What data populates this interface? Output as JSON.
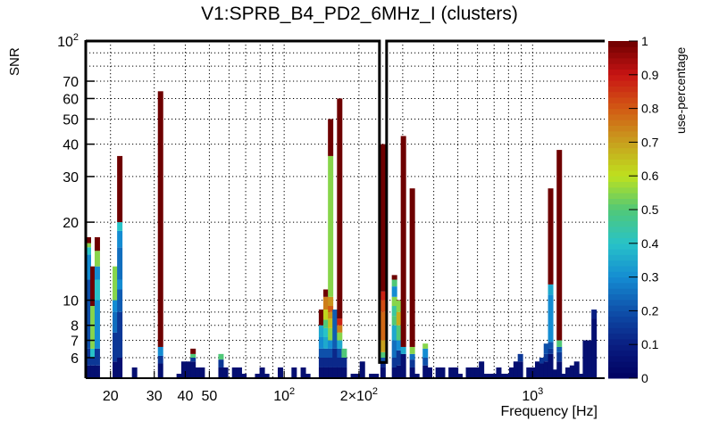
{
  "chart_data": {
    "type": "heatmap",
    "title": "V1:SPRB_B4_PD2_6MHz_I (clusters)",
    "xlabel": "Frequency [Hz]",
    "ylabel": "SNR",
    "zlabel": "use-percentage",
    "xscale": "log",
    "yscale": "log",
    "xlim": [
      15.9,
      1950
    ],
    "ylim": [
      5,
      100
    ],
    "zlim": [
      0,
      1
    ],
    "x_ticks": [
      {
        "value": 20,
        "label": "20"
      },
      {
        "value": 30,
        "label": "30"
      },
      {
        "value": 40,
        "label": "40"
      },
      {
        "value": 50,
        "label": "50"
      },
      {
        "value": 100,
        "label": "10",
        "sup": "2"
      },
      {
        "value": 200,
        "label": "2×10",
        "sup": "2"
      },
      {
        "value": 1000,
        "label": "10",
        "sup": "3"
      }
    ],
    "y_ticks": [
      {
        "value": 6,
        "label": "6"
      },
      {
        "value": 7,
        "label": "7"
      },
      {
        "value": 8,
        "label": "8"
      },
      {
        "value": 10,
        "label": "10"
      },
      {
        "value": 20,
        "label": "20"
      },
      {
        "value": 30,
        "label": "30"
      },
      {
        "value": 40,
        "label": "40"
      },
      {
        "value": 50,
        "label": "50"
      },
      {
        "value": 60,
        "label": "60"
      },
      {
        "value": 70,
        "label": "70"
      },
      {
        "value": 100,
        "label": "10",
        "sup": "2"
      }
    ],
    "z_ticks": [
      "0",
      "0.1",
      "0.2",
      "0.3",
      "0.4",
      "0.5",
      "0.6",
      "0.7",
      "0.8",
      "0.9",
      "1"
    ],
    "highlight_column_freq": 250,
    "columns": [
      {
        "f": 16.3,
        "top": 17.5,
        "segs": [
          [
            5,
            0.05
          ],
          [
            5.6,
            0.15
          ],
          [
            6.5,
            0.2
          ],
          [
            12,
            0.3
          ],
          [
            15,
            0.4
          ],
          [
            16,
            0.55
          ],
          [
            16.6,
            1
          ]
        ]
      },
      {
        "f": 17.0,
        "top": 13.5,
        "segs": [
          [
            5,
            0.05
          ],
          [
            5.6,
            0.15
          ],
          [
            6.0,
            0.4
          ],
          [
            6.5,
            0.55
          ],
          [
            9.5,
            1
          ]
        ]
      },
      {
        "f": 17.7,
        "top": 17.5,
        "segs": [
          [
            5,
            0.05
          ],
          [
            5.6,
            0.15
          ],
          [
            6.5,
            0.3
          ],
          [
            10,
            0.4
          ],
          [
            12,
            0.3
          ],
          [
            13.5,
            0.55
          ],
          [
            15.5,
            1
          ]
        ]
      },
      {
        "f": 20.9,
        "top": 13.5,
        "segs": [
          [
            5,
            0.05
          ],
          [
            5.8,
            0.15
          ],
          [
            7.5,
            0.25
          ],
          [
            9,
            0.3
          ],
          [
            10,
            0.55
          ]
        ]
      },
      {
        "f": 21.8,
        "top": 36,
        "segs": [
          [
            5,
            0.05
          ],
          [
            6,
            0.15
          ],
          [
            9,
            0.22
          ],
          [
            11,
            0.3
          ],
          [
            12,
            0.25
          ],
          [
            16,
            0.3
          ],
          [
            18.5,
            0.4
          ],
          [
            20,
            1
          ]
        ]
      },
      {
        "f": 25.0,
        "top": 5.5,
        "segs": [
          [
            5,
            0.05
          ]
        ]
      },
      {
        "f": 31.8,
        "top": 64,
        "segs": [
          [
            5,
            0.05
          ],
          [
            5.7,
            0.15
          ],
          [
            6.1,
            0.3
          ],
          [
            6.6,
            1
          ]
        ]
      },
      {
        "f": 37.8,
        "top": 5.2,
        "segs": [
          [
            5,
            0.05
          ]
        ]
      },
      {
        "f": 39.5,
        "top": 5.8,
        "segs": [
          [
            5,
            0.05
          ]
        ]
      },
      {
        "f": 41.2,
        "top": 5.8,
        "segs": [
          [
            5,
            0.05
          ]
        ]
      },
      {
        "f": 43.0,
        "top": 6.5,
        "segs": [
          [
            5,
            0.05
          ],
          [
            5.8,
            0.15
          ],
          [
            6.0,
            0.5
          ],
          [
            6.2,
            1
          ]
        ]
      },
      {
        "f": 44.9,
        "top": 5.5,
        "segs": [
          [
            5,
            0.05
          ]
        ]
      },
      {
        "f": 46.8,
        "top": 5.5,
        "segs": [
          [
            5,
            0.05
          ]
        ]
      },
      {
        "f": 55.7,
        "top": 6.2,
        "segs": [
          [
            5,
            0.05
          ],
          [
            5.5,
            0.15
          ],
          [
            5.9,
            0.5
          ]
        ]
      },
      {
        "f": 58.1,
        "top": 5.5,
        "segs": [
          [
            5,
            0.05
          ]
        ]
      },
      {
        "f": 63.2,
        "top": 5.5,
        "segs": [
          [
            5,
            0.05
          ]
        ]
      },
      {
        "f": 66.0,
        "top": 5.5,
        "segs": [
          [
            5,
            0.05
          ]
        ]
      },
      {
        "f": 68.9,
        "top": 5.2,
        "segs": [
          [
            5,
            0.05
          ]
        ]
      },
      {
        "f": 78.2,
        "top": 5.2,
        "segs": [
          [
            5,
            0.05
          ]
        ]
      },
      {
        "f": 81.6,
        "top": 5.5,
        "segs": [
          [
            5,
            0.05
          ]
        ]
      },
      {
        "f": 85.1,
        "top": 5.2,
        "segs": [
          [
            5,
            0.05
          ]
        ]
      },
      {
        "f": 96.6,
        "top": 5.5,
        "segs": [
          [
            5,
            0.05
          ]
        ]
      },
      {
        "f": 109.7,
        "top": 5.5,
        "segs": [
          [
            5,
            0.05
          ]
        ]
      },
      {
        "f": 119.4,
        "top": 5.5,
        "segs": [
          [
            5,
            0.05
          ]
        ]
      },
      {
        "f": 124.5,
        "top": 5.2,
        "segs": [
          [
            5,
            0.05
          ]
        ]
      },
      {
        "f": 141.3,
        "top": 9.2,
        "segs": [
          [
            5,
            0.05
          ],
          [
            5.5,
            0.12
          ],
          [
            6,
            0.2
          ],
          [
            6.5,
            0.3
          ],
          [
            7.2,
            0.35
          ],
          [
            8.0,
            1
          ]
        ]
      },
      {
        "f": 147.4,
        "top": 11.0,
        "segs": [
          [
            5,
            0.05
          ],
          [
            5.5,
            0.12
          ],
          [
            6,
            0.2
          ],
          [
            6.5,
            0.35
          ],
          [
            7.2,
            0.4
          ],
          [
            7.8,
            0.5
          ],
          [
            8.4,
            0.62
          ],
          [
            9.2,
            0.75
          ],
          [
            10.3,
            1
          ]
        ]
      },
      {
        "f": 153.8,
        "top": 50,
        "segs": [
          [
            5,
            0.05
          ],
          [
            5.5,
            0.12
          ],
          [
            6,
            0.2
          ],
          [
            6.5,
            0.3
          ],
          [
            7,
            0.55
          ],
          [
            7.8,
            0.65
          ],
          [
            8.5,
            0.72
          ],
          [
            9,
            0.8
          ],
          [
            9.5,
            0.72
          ],
          [
            10.3,
            0.55
          ],
          [
            36,
            1
          ]
        ]
      },
      {
        "f": 160.4,
        "top": 9.2,
        "segs": [
          [
            5,
            0.05
          ],
          [
            5.5,
            0.12
          ],
          [
            6.5,
            0.22
          ]
        ]
      },
      {
        "f": 167.3,
        "top": 60,
        "segs": [
          [
            5,
            0.05
          ],
          [
            5.5,
            0.12
          ],
          [
            6,
            0.2
          ],
          [
            6.5,
            0.35
          ],
          [
            7,
            0.55
          ],
          [
            7.5,
            0.75
          ],
          [
            8,
            0.88
          ],
          [
            8.5,
            1
          ]
        ]
      },
      {
        "f": 174.5,
        "top": 6.5,
        "segs": [
          [
            5,
            0.05
          ],
          [
            5.5,
            0.12
          ],
          [
            6.0,
            0.5
          ]
        ]
      },
      {
        "f": 189.8,
        "top": 5.2,
        "segs": [
          [
            5,
            0.05
          ]
        ]
      },
      {
        "f": 198.0,
        "top": 5.2,
        "segs": [
          [
            5,
            0.05
          ]
        ]
      },
      {
        "f": 206.5,
        "top": 5.8,
        "segs": [
          [
            5,
            0.05
          ]
        ]
      },
      {
        "f": 225.0,
        "top": 5.2,
        "segs": [
          [
            5,
            0.05
          ]
        ]
      },
      {
        "f": 234.7,
        "top": 5.2,
        "segs": [
          [
            5,
            0.05
          ]
        ]
      },
      {
        "f": 250.0,
        "top": 40,
        "segs": [
          [
            5,
            0.05
          ],
          [
            5.5,
            0.12
          ],
          [
            5.8,
            0.2
          ],
          [
            6.0,
            0.5
          ],
          [
            6.3,
            0.7
          ],
          [
            7,
            0.78
          ],
          [
            9,
            0.82
          ],
          [
            10,
            0.88
          ],
          [
            10.8,
            1
          ]
        ]
      },
      {
        "f": 278.0,
        "top": 12.5,
        "segs": [
          [
            5,
            0.05
          ],
          [
            5.5,
            0.15
          ],
          [
            6,
            0.25
          ],
          [
            7,
            0.35
          ],
          [
            8,
            0.5
          ],
          [
            8.7,
            0.45
          ],
          [
            9.5,
            0.55
          ],
          [
            10.3,
            0.3
          ],
          [
            11.3,
            0.5
          ],
          [
            12,
            1
          ]
        ]
      },
      {
        "f": 290.0,
        "top": 10.0,
        "segs": [
          [
            5,
            0.05
          ],
          [
            5.6,
            0.15
          ],
          [
            6.4,
            0.3
          ],
          [
            7,
            0.5
          ],
          [
            8,
            0.68
          ],
          [
            9,
            0.55
          ],
          [
            10,
            1
          ]
        ]
      },
      {
        "f": 302.0,
        "top": 43,
        "segs": [
          [
            5,
            0.05
          ],
          [
            6.2,
            0.35
          ],
          [
            6.6,
            1
          ]
        ]
      },
      {
        "f": 328.0,
        "top": 27,
        "segs": [
          [
            5,
            0.05
          ],
          [
            5.5,
            0.15
          ],
          [
            5.9,
            0.25
          ],
          [
            6.2,
            0.55
          ],
          [
            6.6,
            1
          ]
        ]
      },
      {
        "f": 342.0,
        "top": 5.2,
        "segs": [
          [
            5,
            0.05
          ]
        ]
      },
      {
        "f": 370.0,
        "top": 6.8,
        "segs": [
          [
            5,
            0.05
          ],
          [
            5.6,
            0.2
          ],
          [
            6.0,
            0.3
          ],
          [
            6.5,
            0.55
          ]
        ]
      },
      {
        "f": 385.0,
        "top": 5.5,
        "segs": [
          [
            5,
            0.05
          ]
        ]
      },
      {
        "f": 417.0,
        "top": 5.5,
        "segs": [
          [
            5,
            0.05
          ]
        ]
      },
      {
        "f": 434.0,
        "top": 5.5,
        "segs": [
          [
            5,
            0.05
          ]
        ]
      },
      {
        "f": 470.0,
        "top": 5.5,
        "segs": [
          [
            5,
            0.05
          ]
        ]
      },
      {
        "f": 490.0,
        "top": 5.5,
        "segs": [
          [
            5,
            0.05
          ]
        ]
      },
      {
        "f": 510.0,
        "top": 5.2,
        "segs": [
          [
            5,
            0.05
          ]
        ]
      },
      {
        "f": 552.0,
        "top": 5.5,
        "segs": [
          [
            5,
            0.05
          ]
        ]
      },
      {
        "f": 575.0,
        "top": 5.5,
        "segs": [
          [
            5,
            0.05
          ]
        ]
      },
      {
        "f": 598.0,
        "top": 5.5,
        "segs": [
          [
            5,
            0.05
          ]
        ]
      },
      {
        "f": 623.0,
        "top": 5.8,
        "segs": [
          [
            5,
            0.05
          ]
        ]
      },
      {
        "f": 648.0,
        "top": 5.2,
        "segs": [
          [
            5,
            0.05
          ]
        ]
      },
      {
        "f": 675.0,
        "top": 5.2,
        "segs": [
          [
            5,
            0.05
          ]
        ]
      },
      {
        "f": 702.0,
        "top": 5.2,
        "segs": [
          [
            5,
            0.05
          ]
        ]
      },
      {
        "f": 731.0,
        "top": 5.5,
        "segs": [
          [
            5,
            0.05
          ]
        ]
      },
      {
        "f": 760.0,
        "top": 5.2,
        "segs": [
          [
            5,
            0.05
          ]
        ]
      },
      {
        "f": 792.0,
        "top": 5.2,
        "segs": [
          [
            5,
            0.05
          ]
        ]
      },
      {
        "f": 824.0,
        "top": 5.5,
        "segs": [
          [
            5,
            0.05
          ]
        ]
      },
      {
        "f": 858.0,
        "top": 5.8,
        "segs": [
          [
            5,
            0.05
          ]
        ]
      },
      {
        "f": 893.0,
        "top": 6.2,
        "segs": [
          [
            5,
            0.05
          ],
          [
            5.8,
            0.15
          ]
        ]
      },
      {
        "f": 967.0,
        "top": 5.5,
        "segs": [
          [
            5,
            0.05
          ]
        ]
      },
      {
        "f": 1007.0,
        "top": 5.5,
        "segs": [
          [
            5,
            0.05
          ]
        ]
      },
      {
        "f": 1048.0,
        "top": 5.8,
        "segs": [
          [
            5,
            0.05
          ]
        ]
      },
      {
        "f": 1091.0,
        "top": 6.0,
        "segs": [
          [
            5,
            0.05
          ],
          [
            5.7,
            0.15
          ]
        ]
      },
      {
        "f": 1136.0,
        "top": 6.8,
        "segs": [
          [
            5,
            0.05
          ],
          [
            5.8,
            0.15
          ],
          [
            6.2,
            0.2
          ]
        ]
      },
      {
        "f": 1182.0,
        "top": 27,
        "segs": [
          [
            5,
            0.05
          ],
          [
            6.2,
            0.15
          ],
          [
            6.5,
            0.2
          ],
          [
            6.9,
            0.3
          ],
          [
            10.5,
            0.35
          ],
          [
            11.5,
            1
          ]
        ]
      },
      {
        "f": 1231.0,
        "top": 5.4,
        "segs": [
          [
            5,
            0.05
          ]
        ]
      },
      {
        "f": 1281.0,
        "top": 38,
        "segs": [
          [
            5,
            0.05
          ],
          [
            5.8,
            0.15
          ],
          [
            6.3,
            0.22
          ],
          [
            6.6,
            0.5
          ],
          [
            7,
            1
          ]
        ]
      },
      {
        "f": 1334.0,
        "top": 5.2,
        "segs": [
          [
            5,
            0.05
          ]
        ]
      },
      {
        "f": 1389.0,
        "top": 5.5,
        "segs": [
          [
            5,
            0.05
          ]
        ]
      },
      {
        "f": 1445.0,
        "top": 5.6,
        "segs": [
          [
            5,
            0.05
          ]
        ]
      },
      {
        "f": 1505.0,
        "top": 5.8,
        "segs": [
          [
            5,
            0.05
          ]
        ]
      },
      {
        "f": 1567.0,
        "top": 5.2,
        "segs": [
          [
            5,
            0.05
          ]
        ]
      },
      {
        "f": 1631.0,
        "top": 7.0,
        "segs": [
          [
            5,
            0.05
          ]
        ]
      },
      {
        "f": 1698.0,
        "top": 7.0,
        "segs": [
          [
            5,
            0.05
          ]
        ]
      },
      {
        "f": 1768.0,
        "top": 9.2,
        "segs": [
          [
            5,
            0.05
          ],
          [
            8.5,
            0.1
          ]
        ]
      }
    ]
  }
}
